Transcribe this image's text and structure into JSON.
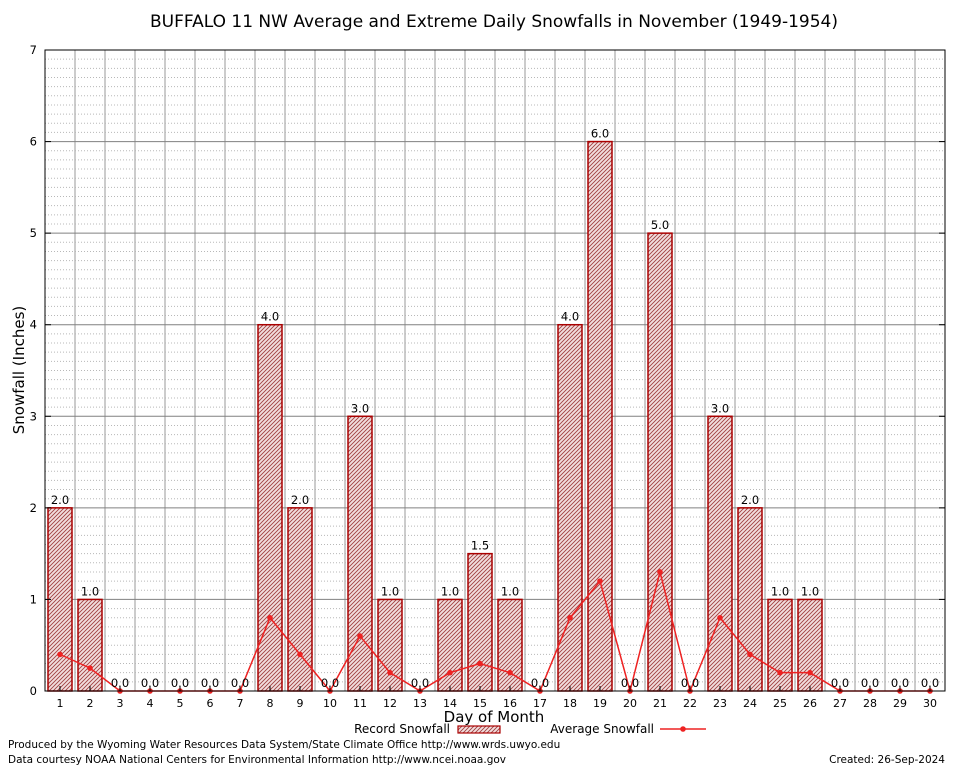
{
  "chart_data": {
    "type": "bar",
    "title": "BUFFALO 11 NW Average and Extreme Daily Snowfalls in November (1949-1954)",
    "xlabel": "Day of Month",
    "ylabel": "Snowfall (Inches)",
    "ylim": [
      0,
      7
    ],
    "yticks": [
      "0",
      "1",
      "2",
      "3",
      "4",
      "5",
      "6",
      "7"
    ],
    "categories": [
      "1",
      "2",
      "3",
      "4",
      "5",
      "6",
      "7",
      "8",
      "9",
      "10",
      "11",
      "12",
      "13",
      "14",
      "15",
      "16",
      "17",
      "18",
      "19",
      "20",
      "21",
      "22",
      "23",
      "24",
      "25",
      "26",
      "27",
      "28",
      "29",
      "30"
    ],
    "series": [
      {
        "name": "Record Snowfall",
        "kind": "bar",
        "values": [
          2.0,
          1.0,
          0.0,
          0.0,
          0.0,
          0.0,
          0.0,
          4.0,
          2.0,
          0.0,
          3.0,
          1.0,
          0.0,
          1.0,
          1.5,
          1.0,
          0.0,
          4.0,
          6.0,
          0.0,
          5.0,
          0.0,
          3.0,
          2.0,
          1.0,
          1.0,
          0.0,
          0.0,
          0.0,
          0.0
        ],
        "labels": [
          "2.0",
          "1.0",
          "0.0",
          "0.0",
          "0.0",
          "0.0",
          "0.0",
          "4.0",
          "2.0",
          "0.0",
          "3.0",
          "1.0",
          "0.0",
          "1.0",
          "1.5",
          "1.0",
          "0.0",
          "4.0",
          "6.0",
          "0.0",
          "5.0",
          "0.0",
          "3.0",
          "2.0",
          "1.0",
          "1.0",
          "0.0",
          "0.0",
          "0.0",
          "0.0"
        ]
      },
      {
        "name": "Average Snowfall",
        "kind": "line",
        "values": [
          0.4,
          0.25,
          0.0,
          0.0,
          0.0,
          0.0,
          0.0,
          0.8,
          0.4,
          0.0,
          0.6,
          0.2,
          0.0,
          0.2,
          0.3,
          0.2,
          0.0,
          0.8,
          1.2,
          0.0,
          1.3,
          0.0,
          0.8,
          0.4,
          0.2,
          0.2,
          0.0,
          0.0,
          0.0,
          0.0
        ]
      }
    ],
    "legend": {
      "position": "bottom",
      "bar_label": "Record Snowfall",
      "line_label": "Average Snowfall"
    },
    "grid": true,
    "colors": {
      "bar_edge": "#aa0000",
      "bar_fill": "#e3b0b0",
      "line": "#ee2222",
      "grid": "#9a9a9a"
    }
  },
  "footer": {
    "produced_by": "Produced by the Wyoming Water Resources Data System/State Climate Office http://www.wrds.uwyo.edu",
    "courtesy": "Data courtesy NOAA National Centers for Environmental Information http://www.ncei.noaa.gov",
    "created": "Created:  26-Sep-2024"
  }
}
